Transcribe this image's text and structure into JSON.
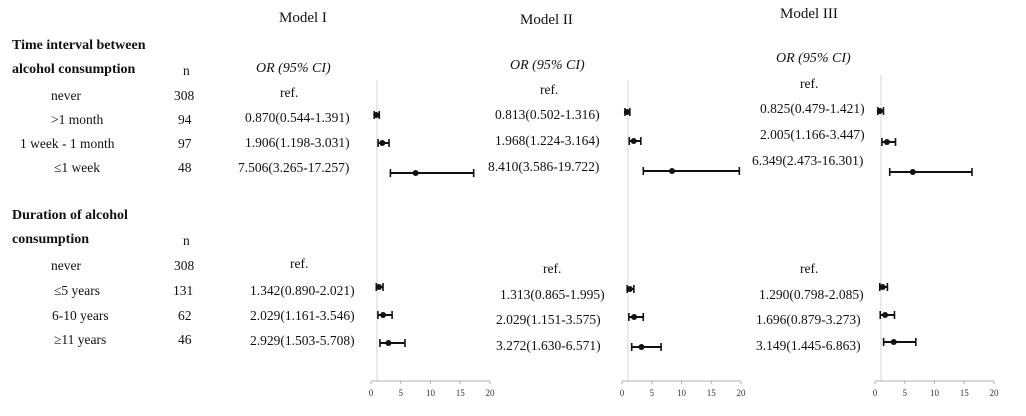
{
  "n_header": "n",
  "models": [
    {
      "title": "Model I",
      "ci_header": "OR (95% CI)"
    },
    {
      "title": "Model II",
      "ci_header": "OR (95% CI)"
    },
    {
      "title": "Model III",
      "ci_header": "OR (95% CI)"
    }
  ],
  "sections": [
    {
      "title_lines": [
        "Time interval between",
        "alcohol consumption"
      ],
      "rows": [
        {
          "label": "never",
          "n": "308",
          "cells": [
            "ref.",
            "ref.",
            "ref."
          ]
        },
        {
          "label": ">1 month",
          "n": "94",
          "cells": [
            "0.870(0.544-1.391)",
            "0.813(0.502-1.316)",
            "0.825(0.479-1.421)"
          ]
        },
        {
          "label": "1 week - 1 month",
          "n": "97",
          "cells": [
            "1.906(1.198-3.031)",
            "1.968(1.224-3.164)",
            "2.005(1.166-3.447)"
          ]
        },
        {
          "label": "≤1 week",
          "n": "48",
          "cells": [
            "7.506(3.265-17.257)",
            "8.410(3.586-19.722)",
            "6.349(2.473-16.301)"
          ]
        }
      ]
    },
    {
      "title_lines": [
        "Duration of alcohol",
        "consumption"
      ],
      "rows": [
        {
          "label": "never",
          "n": "308",
          "cells": [
            "ref.",
            "ref.",
            "ref."
          ]
        },
        {
          "label": "≤5 years",
          "n": "131",
          "cells": [
            "1.342(0.890-2.021)",
            "1.313(0.865-1.995)",
            "1.290(0.798-2.085)"
          ]
        },
        {
          "label": "6-10 years",
          "n": "62",
          "cells": [
            "2.029(1.161-3.546)",
            "2.029(1.151-3.575)",
            "1.696(0.879-3.273)"
          ]
        },
        {
          "label": "≥11 years",
          "n": "46",
          "cells": [
            "2.929(1.503-5.708)",
            "3.272(1.630-6.571)",
            "3.149(1.445-6.863)"
          ]
        }
      ]
    }
  ],
  "chart_data": {
    "type": "forest",
    "xlim": [
      0,
      20
    ],
    "xticks": [
      0,
      5,
      10,
      15,
      20
    ],
    "xtick_labels": [
      "0",
      "5",
      "10",
      "15",
      "20"
    ],
    "reference_line": 1,
    "panels": [
      {
        "model": "Model I",
        "points": [
          {
            "row": ">1 month",
            "or": 0.87,
            "lo": 0.544,
            "hi": 1.391
          },
          {
            "row": "1 week - 1 month",
            "or": 1.906,
            "lo": 1.198,
            "hi": 3.031
          },
          {
            "row": "≤1 week",
            "or": 7.506,
            "lo": 3.265,
            "hi": 17.257
          },
          {
            "row": "≤5 years",
            "or": 1.342,
            "lo": 0.89,
            "hi": 2.021
          },
          {
            "row": "6-10 years",
            "or": 2.029,
            "lo": 1.161,
            "hi": 3.546
          },
          {
            "row": "≥11 years",
            "or": 2.929,
            "lo": 1.503,
            "hi": 5.708
          }
        ]
      },
      {
        "model": "Model II",
        "points": [
          {
            "row": ">1 month",
            "or": 0.813,
            "lo": 0.502,
            "hi": 1.316
          },
          {
            "row": "1 week - 1 month",
            "or": 1.968,
            "lo": 1.224,
            "hi": 3.164
          },
          {
            "row": "≤1 week",
            "or": 8.41,
            "lo": 3.586,
            "hi": 19.722
          },
          {
            "row": "≤5 years",
            "or": 1.313,
            "lo": 0.865,
            "hi": 1.995
          },
          {
            "row": "6-10 years",
            "or": 2.029,
            "lo": 1.151,
            "hi": 3.575
          },
          {
            "row": "≥11 years",
            "or": 3.272,
            "lo": 1.63,
            "hi": 6.571
          }
        ]
      },
      {
        "model": "Model III",
        "points": [
          {
            "row": ">1 month",
            "or": 0.825,
            "lo": 0.479,
            "hi": 1.421
          },
          {
            "row": "1 week - 1 month",
            "or": 2.005,
            "lo": 1.166,
            "hi": 3.447
          },
          {
            "row": "≤1 week",
            "or": 6.349,
            "lo": 2.473,
            "hi": 16.301
          },
          {
            "row": "≤5 years",
            "or": 1.29,
            "lo": 0.798,
            "hi": 2.085
          },
          {
            "row": "6-10 years",
            "or": 1.696,
            "lo": 0.879,
            "hi": 3.273
          },
          {
            "row": "≥11 years",
            "or": 3.149,
            "lo": 1.445,
            "hi": 6.863
          }
        ]
      }
    ]
  }
}
